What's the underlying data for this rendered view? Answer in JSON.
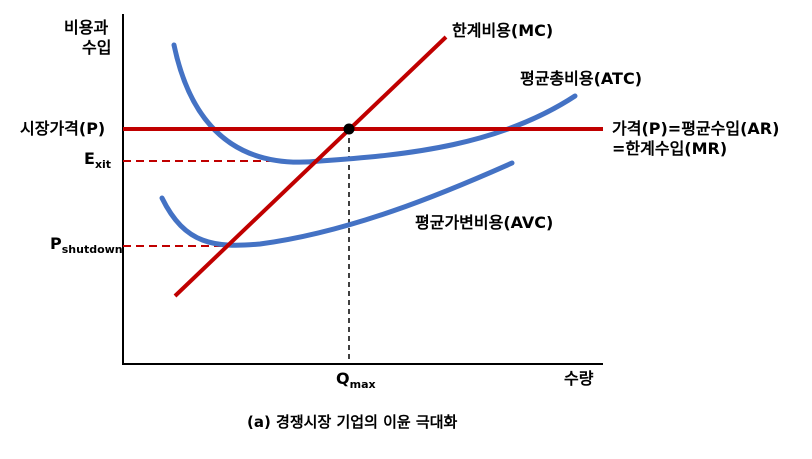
{
  "axes": {
    "y_label_line1": "비용과",
    "y_label_line2": "수입",
    "x_label": "수량"
  },
  "levels": {
    "market_price": "시장가격(P)",
    "exit_main": "E",
    "exit_sub": "xit",
    "shutdown_main": "P",
    "shutdown_sub": "shutdown",
    "qmax_main": "Q",
    "qmax_sub": "max"
  },
  "curves": {
    "mc": "한계비용(MC)",
    "atc": "평균총비용(ATC)",
    "avc": "평균가변비용(AVC)",
    "price_line1": "가격(P)=평균수입(AR)",
    "price_line2": "=한계수입(MR)"
  },
  "caption": "(a)  경쟁시장 기업의 이윤 극대화",
  "colors": {
    "price_line": "#C00000",
    "mc_line": "#C00000",
    "cost_curves": "#4472C4",
    "dashed": "#C00000",
    "axis": "#000000"
  }
}
